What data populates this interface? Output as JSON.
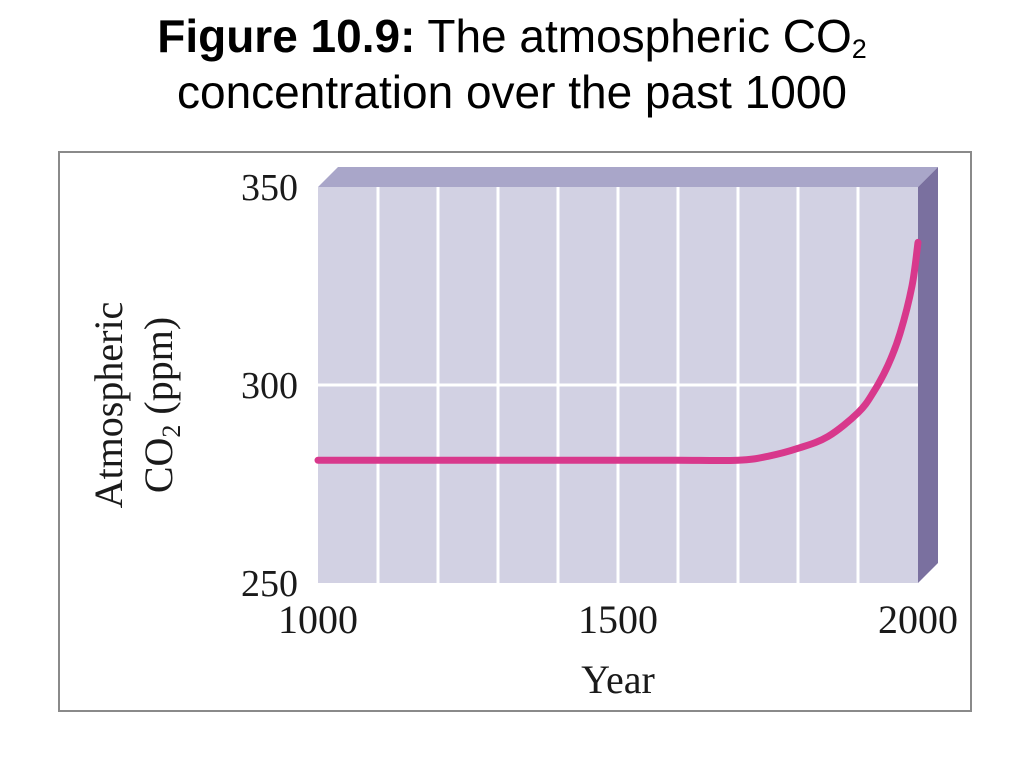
{
  "title": {
    "figure_label": "Figure 10.9:",
    "text_line1": " The atmospheric CO",
    "subscript": "2",
    "text_line2": "concentration over the past 1000"
  },
  "colors": {
    "plot_face": "#d2d1e3",
    "top_face": "#a9a6c9",
    "side_face": "#7a709f",
    "grid": "#ffffff",
    "line": "#d8388c"
  },
  "chart_data": {
    "type": "line",
    "xlabel": "Year",
    "ylabel_line1": "Atmospheric",
    "ylabel_line2_main": "CO",
    "ylabel_line2_sub": "2",
    "ylabel_line2_tail": " (ppm)",
    "xlim": [
      1000,
      2000
    ],
    "ylim": [
      250,
      350
    ],
    "x_ticks": [
      1000,
      1500,
      2000
    ],
    "x_tick_labels": [
      "1000",
      "1500",
      "2000"
    ],
    "y_ticks": [
      250,
      300,
      350
    ],
    "y_tick_labels": [
      "250",
      "300",
      "350"
    ],
    "x_gridlines": [
      1000,
      1100,
      1200,
      1300,
      1400,
      1500,
      1600,
      1700,
      1800,
      1900,
      2000
    ],
    "y_gridlines": [
      250,
      300
    ],
    "grid": true,
    "series": [
      {
        "x": [
          1000,
          1100,
          1200,
          1300,
          1400,
          1500,
          1600,
          1700,
          1750,
          1800,
          1850,
          1900,
          1925,
          1950,
          1970,
          1990,
          2000
        ],
        "y": [
          281,
          281,
          281,
          281,
          281,
          281,
          281,
          281,
          282,
          284,
          287,
          293,
          298,
          305,
          313,
          325,
          336
        ]
      }
    ]
  }
}
